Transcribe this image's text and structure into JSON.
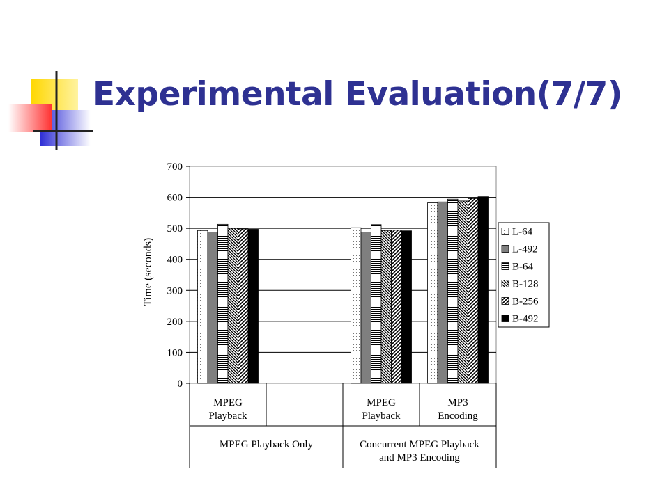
{
  "slide": {
    "title": "Experimental Evaluation(7/7)",
    "title_color": "#2e3192"
  },
  "colors": {
    "deco_yellow": "#ffd700",
    "deco_blue": "#2f2fd6",
    "deco_red": "#ff3333"
  },
  "chart_data": {
    "type": "bar",
    "ylabel": "Time (seconds)",
    "ylim": [
      0,
      700
    ],
    "yticks": [
      0,
      100,
      200,
      300,
      400,
      500,
      600,
      700
    ],
    "grid": true,
    "legend_position": "right",
    "groups": [
      {
        "label": "MPEG Playback",
        "values": [
          493,
          488,
          513,
          500,
          498,
          497
        ]
      },
      {
        "label": "",
        "values": []
      },
      {
        "label": "MPEG Playback",
        "values": [
          502,
          488,
          512,
          493,
          494,
          492
        ]
      },
      {
        "label": "MP3 Encoding",
        "values": [
          582,
          585,
          594,
          588,
          596,
          602
        ]
      }
    ],
    "super_groups": [
      {
        "label": "MPEG Playback Only"
      },
      {
        "label": "Concurrent MPEG Playback and MP3 Encoding"
      }
    ],
    "series": [
      {
        "name": "L-64",
        "pattern": "dots"
      },
      {
        "name": "L-492",
        "pattern": "gray"
      },
      {
        "name": "B-64",
        "pattern": "hlines"
      },
      {
        "name": "B-128",
        "pattern": "backslash"
      },
      {
        "name": "B-256",
        "pattern": "slash"
      },
      {
        "name": "B-492",
        "pattern": "black"
      }
    ]
  }
}
